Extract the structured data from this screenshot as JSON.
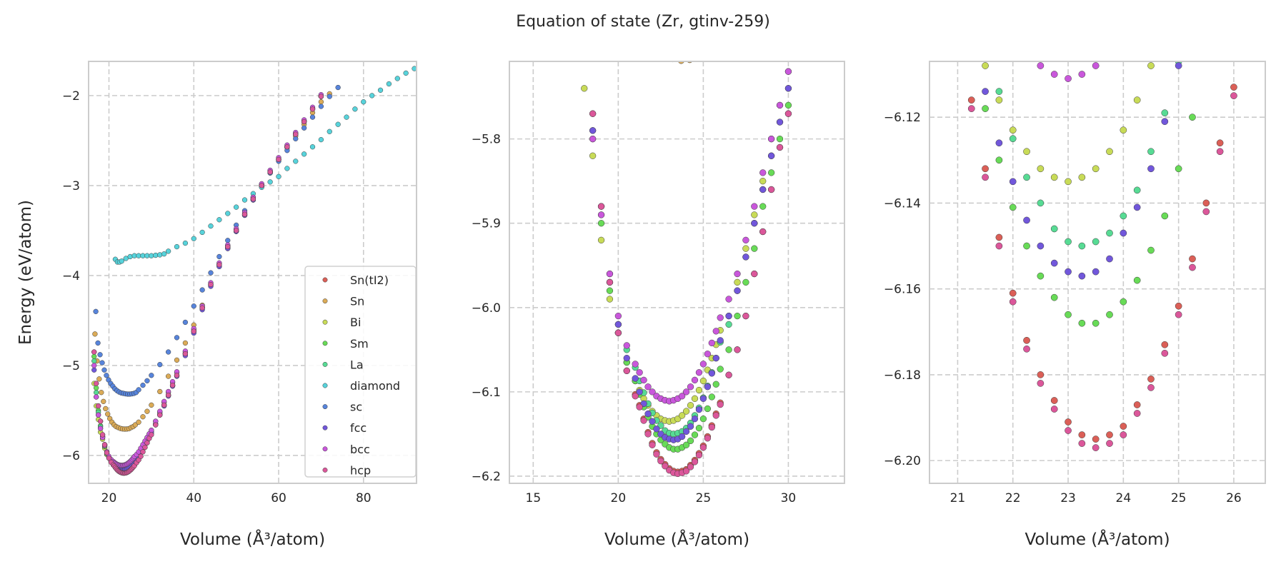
{
  "chart_data": {
    "type": "scatter",
    "title": "Equation of state (Zr, gtinv-259)",
    "legend_position": "lower-right (first panel)",
    "grid": true,
    "panels": [
      {
        "xlabel": "Volume (Å³/atom)",
        "ylabel": "Energy (eV/atom)",
        "xlim": [
          15.2,
          92.5
        ],
        "ylim": [
          -6.31,
          -1.62
        ],
        "xticks": [
          20,
          40,
          60,
          80
        ],
        "xtick_labels": [
          "20",
          "40",
          "60",
          "80"
        ],
        "yticks": [
          -2,
          -3,
          -4,
          -5,
          -6
        ],
        "ytick_labels": [
          "−2",
          "−3",
          "−4",
          "−5",
          "−6"
        ]
      },
      {
        "xlabel": "Volume (Å³/atom)",
        "ylabel": "",
        "xlim": [
          13.6,
          33.3
        ],
        "ylim": [
          -6.2085,
          -5.708
        ],
        "xticks": [
          15,
          20,
          25,
          30
        ],
        "xtick_labels": [
          "15",
          "20",
          "25",
          "30"
        ],
        "yticks": [
          -5.8,
          -5.9,
          -6.0,
          -6.1,
          -6.2
        ],
        "ytick_labels": [
          "−5.8",
          "−5.9",
          "−6.0",
          "−6.1",
          "−6.2"
        ]
      },
      {
        "xlabel": "Volume (Å³/atom)",
        "ylabel": "",
        "xlim": [
          20.49,
          26.57
        ],
        "ylim": [
          -6.2053,
          -6.107
        ],
        "xticks": [
          21,
          22,
          23,
          24,
          25,
          26
        ],
        "xtick_labels": [
          "21",
          "22",
          "23",
          "24",
          "25",
          "26"
        ],
        "yticks": [
          -6.12,
          -6.14,
          -6.16,
          -6.18,
          -6.2
        ],
        "ytick_labels": [
          "−6.12",
          "−6.14",
          "−6.16",
          "−6.18",
          "−6.20"
        ]
      }
    ],
    "x_grid": [
      16.5,
      17,
      17.5,
      18,
      18.5,
      19,
      19.5,
      20,
      20.5,
      21,
      21.25,
      21.5,
      21.75,
      22,
      22.25,
      22.5,
      22.75,
      23,
      23.25,
      23.5,
      23.75,
      24,
      24.25,
      24.5,
      24.75,
      25,
      25.25,
      25.5,
      25.75,
      26,
      26.5,
      27,
      27.5,
      28,
      28.5,
      29,
      29.5,
      30,
      31,
      32,
      33,
      34,
      35,
      36,
      38,
      40,
      42,
      44,
      46,
      48,
      50,
      52,
      54,
      56,
      58,
      60,
      62,
      64,
      66,
      68,
      70
    ],
    "series": [
      {
        "name": "Sn(tI2)",
        "color": "#db5f57",
        "y": [
          -4.85,
          -5.2,
          -5.45,
          -5.62,
          -5.77,
          -5.88,
          -5.97,
          -6.03,
          -6.075,
          -6.103,
          -6.116,
          -6.132,
          -6.148,
          -6.161,
          -6.172,
          -6.18,
          -6.186,
          -6.191,
          -6.194,
          -6.195,
          -6.194,
          -6.192,
          -6.187,
          -6.181,
          -6.173,
          -6.164,
          -6.153,
          -6.14,
          -6.126,
          -6.113,
          -6.08,
          -6.05,
          -6.01,
          -5.96,
          -5.91,
          -5.86,
          -5.81,
          -5.77,
          -5.66,
          -5.55,
          -5.44,
          -5.33,
          -5.22,
          -5.11,
          -4.87,
          -4.62,
          -4.36,
          -4.1,
          -3.88,
          -3.68,
          -3.5,
          -3.32,
          -3.15,
          -3.0,
          -2.85,
          -2.71,
          -2.57,
          -2.43,
          -2.29,
          -2.15,
          -2.01
        ]
      },
      {
        "name": "Sn",
        "color": "#dbab57",
        "x": [
          16.7,
          17.2,
          17.7,
          18.2,
          18.7,
          19.2,
          19.7,
          20.2,
          20.7,
          21.2,
          21.7,
          22.2,
          22.7,
          23.2,
          23.7,
          24.2,
          24.7,
          25.2,
          25.7,
          26.2,
          27,
          28,
          29,
          30,
          32,
          34,
          36,
          38,
          40,
          42,
          44,
          46,
          48,
          50,
          52,
          54,
          56,
          58,
          60,
          62,
          64,
          66,
          68,
          70,
          72
        ],
        "y": [
          -4.65,
          -4.95,
          -5.15,
          -5.3,
          -5.4,
          -5.48,
          -5.54,
          -5.59,
          -5.63,
          -5.66,
          -5.68,
          -5.69,
          -5.7,
          -5.705,
          -5.707,
          -5.706,
          -5.703,
          -5.69,
          -5.68,
          -5.66,
          -5.63,
          -5.57,
          -5.51,
          -5.44,
          -5.29,
          -5.12,
          -4.94,
          -4.75,
          -4.55,
          -4.33,
          -4.11,
          -3.9,
          -3.7,
          -3.51,
          -3.33,
          -3.16,
          -3.01,
          -2.86,
          -2.72,
          -2.58,
          -2.45,
          -2.32,
          -2.19,
          -2.07,
          -1.98
        ]
      },
      {
        "name": "Bi",
        "color": "#c8db57",
        "y": [
          -5.2,
          -5.45,
          -5.6,
          -5.74,
          -5.82,
          -5.92,
          -5.99,
          -6.03,
          -6.065,
          -6.087,
          -6.098,
          -6.108,
          -6.116,
          -6.123,
          -6.128,
          -6.132,
          -6.134,
          -6.135,
          -6.134,
          -6.132,
          -6.128,
          -6.123,
          -6.116,
          -6.108,
          -6.098,
          -6.087,
          -6.074,
          -6.06,
          -6.044,
          -6.027,
          -6.01,
          -5.97,
          -5.93,
          -5.89,
          -5.85,
          -5.8,
          -5.76,
          -5.72,
          -5.62,
          -5.52,
          -5.41,
          -5.3,
          -5.19,
          -5.08,
          -4.85,
          -4.6,
          -4.35,
          -4.09,
          -3.87,
          -3.67,
          -3.49,
          -3.31,
          -3.14,
          -2.99,
          -2.84,
          -2.7,
          -2.56,
          -2.42,
          -2.28,
          -2.14,
          -2.0
        ]
      },
      {
        "name": "Sm",
        "color": "#68db57",
        "y": [
          -4.9,
          -5.25,
          -5.5,
          -5.67,
          -5.8,
          -5.9,
          -5.98,
          -6.03,
          -6.065,
          -6.087,
          -6.103,
          -6.118,
          -6.13,
          -6.141,
          -6.15,
          -6.157,
          -6.162,
          -6.166,
          -6.168,
          -6.168,
          -6.166,
          -6.163,
          -6.158,
          -6.151,
          -6.143,
          -6.132,
          -6.12,
          -6.106,
          -6.091,
          -6.073,
          -6.05,
          -6.01,
          -5.97,
          -5.93,
          -5.88,
          -5.84,
          -5.8,
          -5.76,
          -5.66,
          -5.55,
          -5.44,
          -5.33,
          -5.22,
          -5.11,
          -4.87,
          -4.62,
          -4.36,
          -4.11,
          -3.89,
          -3.69,
          -3.51,
          -3.33,
          -3.16,
          -3.0,
          -2.85,
          -2.71,
          -2.57,
          -2.43,
          -2.29,
          -2.15,
          -2.01
        ]
      },
      {
        "name": "La",
        "color": "#57db94",
        "y": [
          -4.95,
          -5.3,
          -5.52,
          -5.68,
          -5.79,
          -5.89,
          -5.97,
          -6.02,
          -6.05,
          -6.071,
          -6.087,
          -6.101,
          -6.114,
          -6.125,
          -6.134,
          -6.14,
          -6.146,
          -6.149,
          -6.15,
          -6.149,
          -6.147,
          -6.143,
          -6.137,
          -6.128,
          -6.119,
          -6.107,
          -6.093,
          -6.077,
          -6.06,
          -6.041,
          -6.02,
          -5.98,
          -5.94,
          -5.9,
          -5.86,
          -5.82,
          -5.78,
          -5.74,
          -5.65,
          -5.54,
          -5.44,
          -5.33,
          -5.22,
          -5.11,
          -4.87,
          -4.62,
          -4.36,
          -4.1,
          -3.88,
          -3.68,
          -3.5,
          -3.32,
          -3.15,
          -3.0,
          -2.85,
          -2.71,
          -2.57,
          -2.43,
          -2.29,
          -2.15,
          -2.01
        ]
      },
      {
        "name": "diamond",
        "color": "#57d3db",
        "x": [
          21.5,
          22,
          22.5,
          23,
          24,
          25,
          26,
          27,
          28,
          29,
          30,
          31,
          32,
          33,
          34,
          36,
          38,
          40,
          42,
          44,
          46,
          48,
          50,
          52,
          54,
          56,
          58,
          60,
          62,
          64,
          66,
          68,
          70,
          72,
          74,
          76,
          78,
          80,
          82,
          84,
          86,
          88,
          90,
          92
        ],
        "y": [
          -3.82,
          -3.85,
          -3.85,
          -3.84,
          -3.81,
          -3.79,
          -3.78,
          -3.78,
          -3.78,
          -3.78,
          -3.78,
          -3.775,
          -3.77,
          -3.76,
          -3.73,
          -3.68,
          -3.64,
          -3.59,
          -3.52,
          -3.45,
          -3.38,
          -3.31,
          -3.24,
          -3.16,
          -3.09,
          -3.02,
          -2.96,
          -2.9,
          -2.81,
          -2.73,
          -2.65,
          -2.57,
          -2.49,
          -2.4,
          -2.32,
          -2.24,
          -2.15,
          -2.07,
          -2.0,
          -1.94,
          -1.87,
          -1.81,
          -1.75,
          -1.7
        ]
      },
      {
        "name": "sc",
        "color": "#5784db",
        "x": [
          16.9,
          17.4,
          17.9,
          18.4,
          18.9,
          19.4,
          19.9,
          20.4,
          20.9,
          21.4,
          21.9,
          22.4,
          22.9,
          23.4,
          23.9,
          24.4,
          24.9,
          25.4,
          25.9,
          26.4,
          27,
          28,
          29,
          30,
          32,
          34,
          36,
          38,
          40,
          42,
          44,
          46,
          48,
          50,
          52,
          54,
          56,
          58,
          60,
          62,
          64,
          66,
          68,
          70,
          72,
          74
        ],
        "y": [
          -4.4,
          -4.75,
          -4.88,
          -4.97,
          -5.05,
          -5.11,
          -5.16,
          -5.2,
          -5.23,
          -5.26,
          -5.28,
          -5.295,
          -5.305,
          -5.31,
          -5.315,
          -5.318,
          -5.318,
          -5.315,
          -5.31,
          -5.3,
          -5.27,
          -5.22,
          -5.17,
          -5.11,
          -4.99,
          -4.85,
          -4.69,
          -4.52,
          -4.34,
          -4.16,
          -3.97,
          -3.79,
          -3.61,
          -3.44,
          -3.28,
          -3.13,
          -2.99,
          -2.86,
          -2.73,
          -2.61,
          -2.48,
          -2.36,
          -2.24,
          -2.12,
          -2.01,
          -1.91
        ]
      },
      {
        "name": "fcc",
        "color": "#7157db",
        "y": [
          -5.05,
          -5.35,
          -5.55,
          -5.7,
          -5.79,
          -5.88,
          -5.96,
          -6.02,
          -6.06,
          -6.084,
          -6.1,
          -6.114,
          -6.126,
          -6.135,
          -6.144,
          -6.15,
          -6.154,
          -6.156,
          -6.157,
          -6.156,
          -6.153,
          -6.147,
          -6.141,
          -6.132,
          -6.121,
          -6.108,
          -6.094,
          -6.078,
          -6.06,
          -6.039,
          -6.01,
          -5.98,
          -5.94,
          -5.9,
          -5.86,
          -5.82,
          -5.78,
          -5.74,
          -5.65,
          -5.55,
          -5.45,
          -5.34,
          -5.23,
          -5.12,
          -4.89,
          -4.64,
          -4.38,
          -4.12,
          -3.9,
          -3.7,
          -3.51,
          -3.33,
          -3.16,
          -3.0,
          -2.85,
          -2.71,
          -2.57,
          -2.43,
          -2.29,
          -2.15,
          -2.01
        ]
      },
      {
        "name": "bcc",
        "color": "#c957db",
        "y": [
          -5.0,
          -5.35,
          -5.55,
          -5.7,
          -5.8,
          -5.89,
          -5.96,
          -6.01,
          -6.045,
          -6.067,
          -6.077,
          -6.086,
          -6.094,
          -6.1,
          -6.105,
          -6.108,
          -6.11,
          -6.111,
          -6.11,
          -6.108,
          -6.105,
          -6.1,
          -6.094,
          -6.086,
          -6.077,
          -6.067,
          -6.055,
          -6.042,
          -6.028,
          -6.012,
          -5.99,
          -5.96,
          -5.92,
          -5.88,
          -5.84,
          -5.8,
          -5.76,
          -5.72,
          -5.62,
          -5.51,
          -5.4,
          -5.29,
          -5.18,
          -5.07,
          -4.84,
          -4.59,
          -4.34,
          -4.08,
          -3.86,
          -3.66,
          -3.48,
          -3.3,
          -3.13,
          -2.98,
          -2.83,
          -2.69,
          -2.55,
          -2.41,
          -2.27,
          -2.13,
          -1.99
        ]
      },
      {
        "name": "hcp",
        "color": "#db579a",
        "y": [
          -4.85,
          -5.2,
          -5.45,
          -5.62,
          -5.77,
          -5.88,
          -5.97,
          -6.03,
          -6.075,
          -6.105,
          -6.118,
          -6.134,
          -6.15,
          -6.163,
          -6.174,
          -6.182,
          -6.188,
          -6.193,
          -6.196,
          -6.197,
          -6.196,
          -6.194,
          -6.189,
          -6.183,
          -6.175,
          -6.166,
          -6.155,
          -6.142,
          -6.128,
          -6.115,
          -6.08,
          -6.05,
          -6.01,
          -5.96,
          -5.91,
          -5.86,
          -5.81,
          -5.77,
          -5.66,
          -5.55,
          -5.44,
          -5.33,
          -5.22,
          -5.11,
          -4.87,
          -4.62,
          -4.36,
          -4.1,
          -3.88,
          -3.68,
          -3.5,
          -3.32,
          -3.15,
          -3.0,
          -2.85,
          -2.71,
          -2.57,
          -2.43,
          -2.29,
          -2.15,
          -2.01
        ]
      }
    ]
  }
}
